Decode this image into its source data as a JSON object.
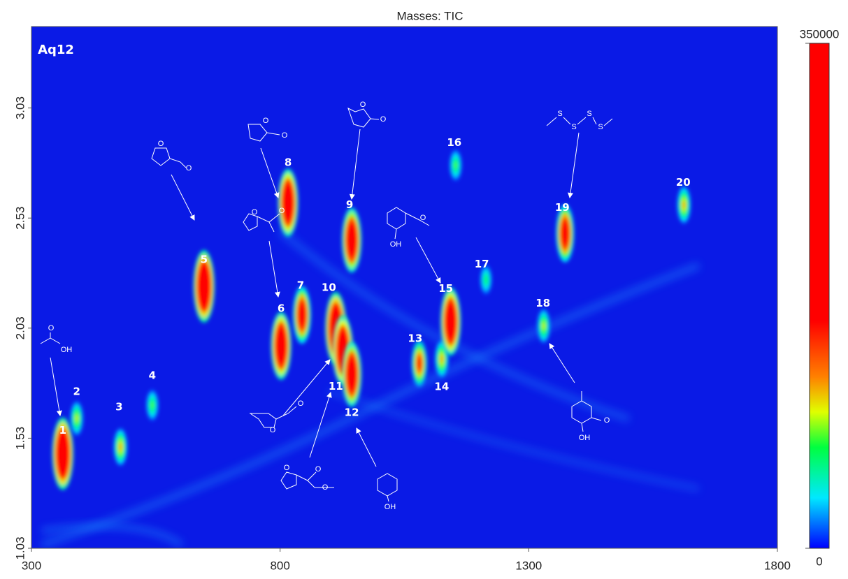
{
  "chart_data": {
    "type": "contour",
    "title": "Masses: TIC",
    "sample_label": "Aq12",
    "xlim": [
      300,
      1800
    ],
    "xticks": [
      300,
      800,
      1300,
      1800
    ],
    "ylim": [
      1.03,
      3.4
    ],
    "yticks": [
      1.03,
      1.53,
      2.03,
      2.53,
      3.03
    ],
    "clim": [
      0,
      350000
    ],
    "cticks": [
      0,
      350000
    ],
    "peaks": [
      {
        "label": "1",
        "x": 363,
        "y": 1.46,
        "intensity": 350000
      },
      {
        "label": "2",
        "x": 391,
        "y": 1.62,
        "intensity": 100000
      },
      {
        "label": "3",
        "x": 479,
        "y": 1.49,
        "intensity": 120000
      },
      {
        "label": "4",
        "x": 543,
        "y": 1.68,
        "intensity": 80000
      },
      {
        "label": "5",
        "x": 647,
        "y": 2.22,
        "intensity": 350000
      },
      {
        "label": "6",
        "x": 802,
        "y": 1.95,
        "intensity": 320000
      },
      {
        "label": "7",
        "x": 844,
        "y": 2.09,
        "intensity": 250000
      },
      {
        "label": "8",
        "x": 816,
        "y": 2.6,
        "intensity": 320000
      },
      {
        "label": "9",
        "x": 944,
        "y": 2.43,
        "intensity": 300000
      },
      {
        "label": "10",
        "x": 912,
        "y": 2.03,
        "intensity": 350000
      },
      {
        "label": "11",
        "x": 926,
        "y": 1.93,
        "intensity": 330000
      },
      {
        "label": "12",
        "x": 944,
        "y": 1.82,
        "intensity": 300000
      },
      {
        "label": "13",
        "x": 1080,
        "y": 1.87,
        "intensity": 180000
      },
      {
        "label": "14",
        "x": 1125,
        "y": 1.89,
        "intensity": 120000
      },
      {
        "label": "15",
        "x": 1143,
        "y": 2.06,
        "intensity": 320000
      },
      {
        "label": "16",
        "x": 1153,
        "y": 2.77,
        "intensity": 80000
      },
      {
        "label": "17",
        "x": 1214,
        "y": 2.25,
        "intensity": 70000
      },
      {
        "label": "18",
        "x": 1330,
        "y": 2.04,
        "intensity": 100000
      },
      {
        "label": "19",
        "x": 1373,
        "y": 2.46,
        "intensity": 250000
      },
      {
        "label": "20",
        "x": 1612,
        "y": 2.59,
        "intensity": 120000
      }
    ],
    "structures": [
      {
        "atoms": [
          "O",
          "OH"
        ]
      },
      {
        "atoms": [
          "O",
          "O"
        ]
      },
      {
        "atoms": [
          "O",
          "O"
        ]
      },
      {
        "atoms": [
          "O",
          "O"
        ]
      },
      {
        "atoms": [
          "O",
          "O"
        ]
      },
      {
        "atoms": [
          "O",
          "OH"
        ]
      },
      {
        "atoms": [
          "S",
          "S",
          "S",
          "S"
        ]
      },
      {
        "atoms": [
          "O",
          "O"
        ]
      },
      {
        "atoms": [
          "O",
          "O",
          "O"
        ]
      },
      {
        "atoms": [
          "OH"
        ]
      },
      {
        "atoms": [
          "O",
          "OH"
        ]
      }
    ]
  }
}
